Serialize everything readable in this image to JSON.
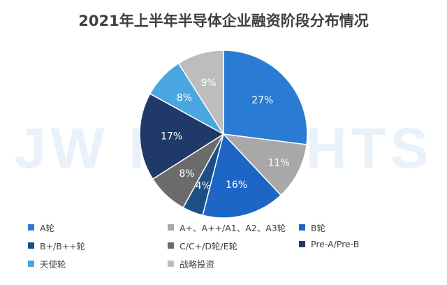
{
  "chart_data": {
    "type": "pie",
    "title": "2021年上半年半导体企业融资阶段分布情况",
    "watermark": "JW INSIGHTS",
    "legend_position": "bottom",
    "slices": [
      {
        "name": "A轮",
        "value": 27,
        "label": "27%",
        "color": "#2a7bd4"
      },
      {
        "name": "A+、A++/A1、A2、A3轮",
        "value": 11,
        "label": "11%",
        "color": "#a8a8a8"
      },
      {
        "name": "B轮",
        "value": 16,
        "label": "16%",
        "color": "#1e66c6"
      },
      {
        "name": "B+/B++轮",
        "value": 4,
        "label": "4%",
        "color": "#1c4f86"
      },
      {
        "name": "C/C+/D轮/E轮",
        "value": 8,
        "label": "8%",
        "color": "#6b6b6b"
      },
      {
        "name": "Pre-A/Pre-B",
        "value": 17,
        "label": "17%",
        "color": "#1f3a68"
      },
      {
        "name": "天使轮",
        "value": 8,
        "label": "8%",
        "color": "#4aa6e0"
      },
      {
        "name": "战略投资",
        "value": 9,
        "label": "9%",
        "color": "#bdbdbd"
      }
    ]
  }
}
